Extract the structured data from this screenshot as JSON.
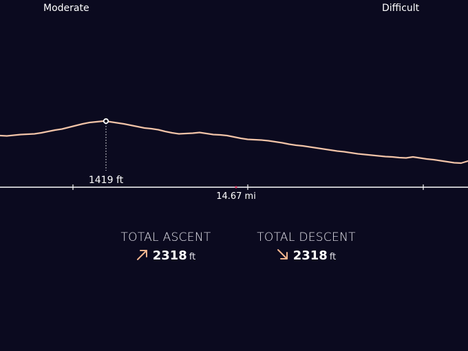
{
  "difficulty": {
    "left_label": "Moderate",
    "right_label": "Difficult"
  },
  "profile": {
    "peak_label": "1419 ft",
    "distance_label": "14.67 mi",
    "colors": {
      "line": "#f2c4a8",
      "axis": "#ffffff",
      "background": "#0b0a1f",
      "marker": "#e0426a"
    }
  },
  "stats": {
    "ascent": {
      "label": "TOTAL ASCENT",
      "value": "2318",
      "unit": "ft",
      "icon": "arrow-up-right-icon"
    },
    "descent": {
      "label": "TOTAL DESCENT",
      "value": "2318",
      "unit": "ft",
      "icon": "arrow-down-right-icon"
    },
    "icon_color": "#f2b58f"
  }
}
